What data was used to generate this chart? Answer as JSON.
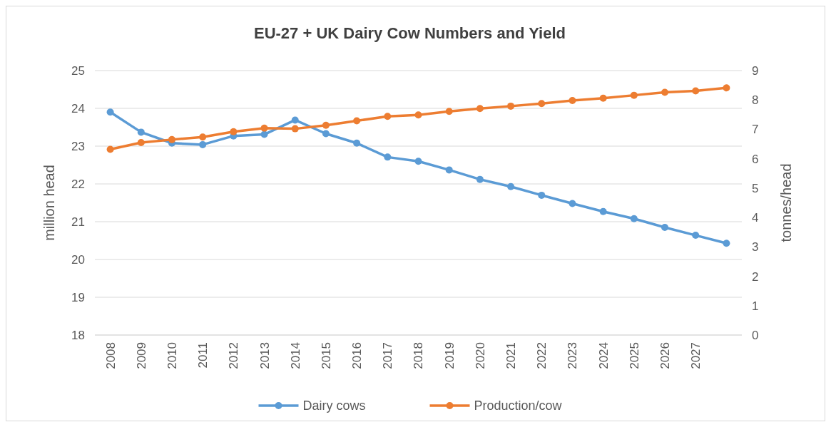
{
  "chart_data": {
    "type": "line",
    "title": "EU-27 + UK Dairy Cow Numbers and Yield",
    "ylabel": "million head",
    "y2label": "tonnes/head",
    "categories": [
      "2008",
      "2009",
      "2010",
      "2011",
      "2012",
      "2013",
      "2014",
      "2015",
      "2016",
      "2017",
      "2018",
      "2019",
      "2020",
      "2021",
      "2022",
      "2023",
      "2024",
      "2025",
      "2026",
      "2027",
      null
    ],
    "series": [
      {
        "name": "Dairy cows",
        "color": "#5b9bd5",
        "values": [
          23.9,
          23.37,
          23.08,
          23.04,
          23.27,
          23.31,
          23.69,
          23.33,
          23.08,
          22.71,
          22.6,
          22.37,
          22.12,
          21.93,
          21.7,
          21.48,
          21.27,
          21.08,
          20.85,
          20.64,
          20.43
        ]
      },
      {
        "name": "Production/cow",
        "color": "#ed7d31",
        "axis": "y2",
        "values": [
          6.32,
          6.55,
          6.65,
          6.74,
          6.92,
          7.04,
          7.02,
          7.14,
          7.29,
          7.44,
          7.49,
          7.61,
          7.71,
          7.79,
          7.88,
          7.98,
          8.06,
          8.16,
          8.26,
          8.31,
          8.41
        ]
      }
    ],
    "ylim": [
      18,
      25
    ],
    "yticks": [
      18,
      19,
      20,
      21,
      22,
      23,
      24,
      25
    ],
    "y2lim": [
      0,
      9
    ],
    "y2ticks": [
      0,
      1,
      2,
      3,
      4,
      5,
      6,
      7,
      8,
      9
    ],
    "grid": "y",
    "legend": "bottom",
    "marker": "circle",
    "line_style": "solid"
  }
}
